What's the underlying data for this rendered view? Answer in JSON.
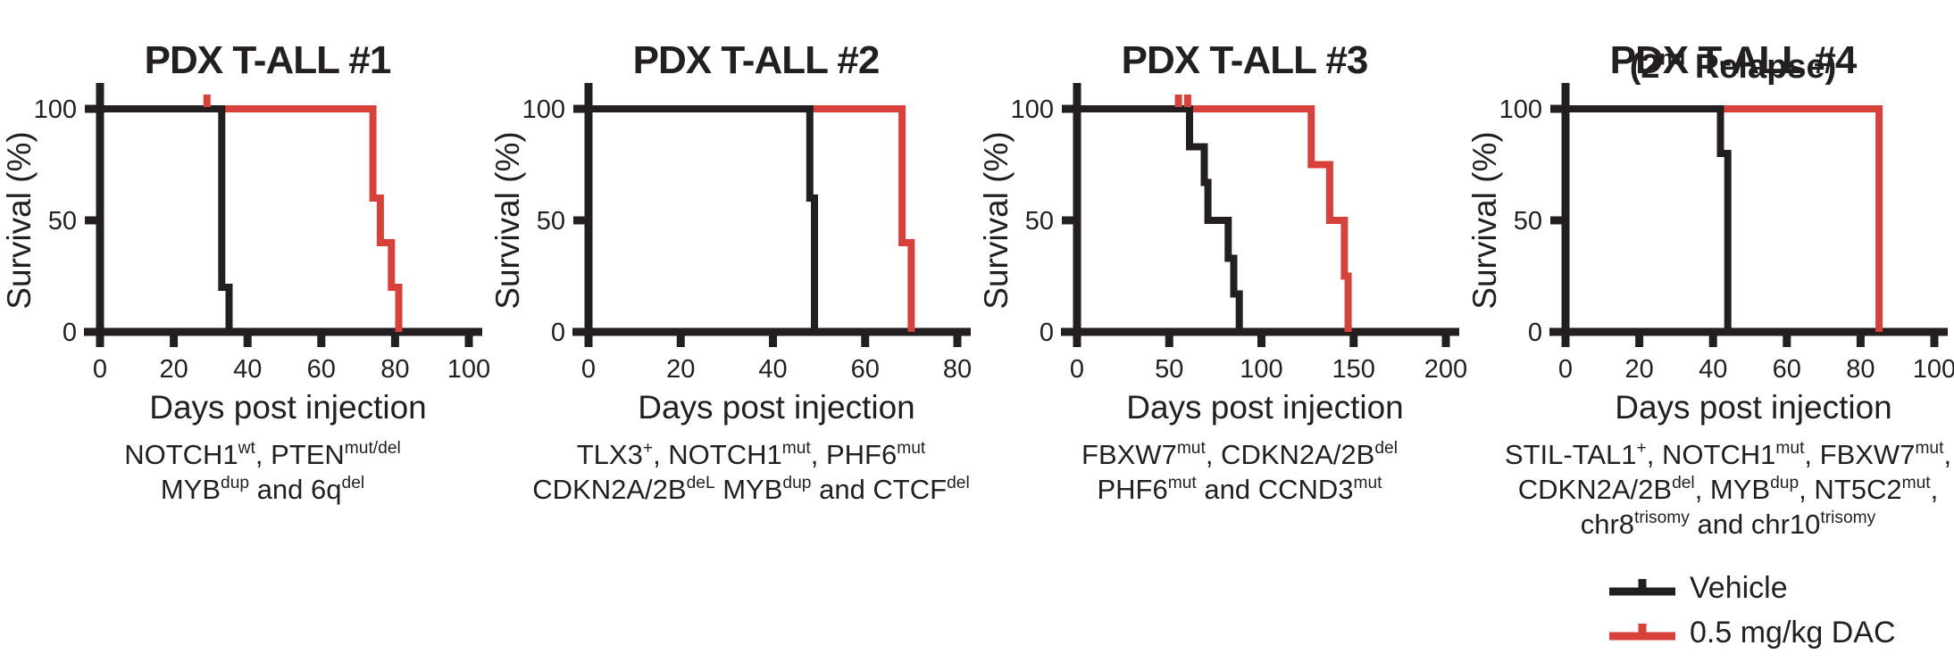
{
  "colors": {
    "vehicle": "#231f20",
    "dac": "#d8413a",
    "text": "#231f20"
  },
  "legend": {
    "entries": [
      {
        "label": "Vehicle",
        "color": "#231f20"
      },
      {
        "label": "0.5 mg/kg DAC",
        "color": "#d8413a"
      }
    ]
  },
  "chart_data": [
    {
      "type": "line",
      "subtype": "kaplan-meier-step",
      "title": "PDX T-ALL #1",
      "subtitle_segments": [],
      "xlabel": "Days post injection",
      "ylabel": "Survival (%)",
      "xlim": [
        0,
        100
      ],
      "xticks": [
        0,
        20,
        40,
        60,
        80,
        100
      ],
      "ylim": [
        0,
        100
      ],
      "yticks": [
        0,
        50,
        100
      ],
      "series": [
        {
          "name": "Vehicle",
          "color": "#231f20",
          "steps": [
            [
              0,
              100
            ],
            [
              33,
              100
            ],
            [
              33,
              20
            ],
            [
              35,
              20
            ],
            [
              35,
              0
            ]
          ],
          "censors": []
        },
        {
          "name": "0.5 mg/kg DAC",
          "color": "#d8413a",
          "steps": [
            [
              0,
              100
            ],
            [
              74,
              100
            ],
            [
              74,
              60
            ],
            [
              76,
              60
            ],
            [
              76,
              40
            ],
            [
              79,
              40
            ],
            [
              79,
              20
            ],
            [
              81,
              20
            ],
            [
              81,
              0
            ]
          ],
          "censors": [
            [
              29,
              100
            ]
          ]
        }
      ],
      "caption_lines": [
        [
          {
            "t": "NOTCH1"
          },
          {
            "sup": "wt"
          },
          {
            "t": ", PTEN"
          },
          {
            "sup": "mut/del"
          }
        ],
        [
          {
            "t": "MYB"
          },
          {
            "sup": "dup"
          },
          {
            "t": " and 6q"
          },
          {
            "sup": "del"
          }
        ]
      ]
    },
    {
      "type": "line",
      "subtype": "kaplan-meier-step",
      "title": "PDX T-ALL #2",
      "subtitle_segments": [],
      "xlabel": "Days post injection",
      "ylabel": "Survival (%)",
      "xlim": [
        0,
        80
      ],
      "xticks": [
        0,
        20,
        40,
        60,
        80
      ],
      "ylim": [
        0,
        100
      ],
      "yticks": [
        0,
        50,
        100
      ],
      "series": [
        {
          "name": "Vehicle",
          "color": "#231f20",
          "steps": [
            [
              0,
              100
            ],
            [
              48,
              100
            ],
            [
              48,
              60
            ],
            [
              49,
              60
            ],
            [
              49,
              0
            ]
          ],
          "censors": []
        },
        {
          "name": "0.5 mg/kg DAC",
          "color": "#d8413a",
          "steps": [
            [
              0,
              100
            ],
            [
              68,
              100
            ],
            [
              68,
              40
            ],
            [
              70,
              40
            ],
            [
              70,
              0
            ]
          ],
          "censors": []
        }
      ],
      "caption_lines": [
        [
          {
            "t": "TLX3"
          },
          {
            "sup": "+"
          },
          {
            "t": ", NOTCH1"
          },
          {
            "sup": "mut"
          },
          {
            "t": ", PHF6"
          },
          {
            "sup": "mut"
          }
        ],
        [
          {
            "t": "CDKN2A/2B"
          },
          {
            "sup": "deL"
          },
          {
            "t": " MYB"
          },
          {
            "sup": "dup"
          },
          {
            "t": " and CTCF"
          },
          {
            "sup": "del"
          }
        ]
      ]
    },
    {
      "type": "line",
      "subtype": "kaplan-meier-step",
      "title": "PDX T-ALL #3",
      "subtitle_segments": [],
      "xlabel": "Days post injection",
      "ylabel": "Survival (%)",
      "xlim": [
        0,
        200
      ],
      "xticks": [
        0,
        50,
        100,
        150,
        200
      ],
      "ylim": [
        0,
        100
      ],
      "yticks": [
        0,
        50,
        100
      ],
      "series": [
        {
          "name": "Vehicle",
          "color": "#231f20",
          "steps": [
            [
              0,
              100
            ],
            [
              61,
              100
            ],
            [
              61,
              83
            ],
            [
              69,
              83
            ],
            [
              69,
              67
            ],
            [
              71,
              67
            ],
            [
              71,
              50
            ],
            [
              82,
              50
            ],
            [
              82,
              33
            ],
            [
              85,
              33
            ],
            [
              85,
              17
            ],
            [
              88,
              17
            ],
            [
              88,
              0
            ]
          ],
          "censors": []
        },
        {
          "name": "0.5 mg/kg DAC",
          "color": "#d8413a",
          "steps": [
            [
              0,
              100
            ],
            [
              127,
              100
            ],
            [
              127,
              75
            ],
            [
              137,
              75
            ],
            [
              137,
              50
            ],
            [
              145,
              50
            ],
            [
              145,
              25
            ],
            [
              147,
              25
            ],
            [
              147,
              0
            ]
          ],
          "censors": [
            [
              55,
              100
            ],
            [
              60,
              100
            ]
          ]
        }
      ],
      "caption_lines": [
        [
          {
            "t": "FBXW7"
          },
          {
            "sup": "mut"
          },
          {
            "t": ", CDKN2A/2B"
          },
          {
            "sup": "del"
          }
        ],
        [
          {
            "t": "PHF6"
          },
          {
            "sup": "mut"
          },
          {
            "t": " and CCND3"
          },
          {
            "sup": "mut"
          }
        ]
      ]
    },
    {
      "type": "line",
      "subtype": "kaplan-meier-step",
      "title": "PDX T-ALL #4",
      "subtitle_segments": [
        {
          "t": "(2"
        },
        {
          "sup": "nd"
        },
        {
          "t": " Relapse)"
        }
      ],
      "xlabel": "Days post injection",
      "ylabel": "Survival (%)",
      "xlim": [
        0,
        100
      ],
      "xticks": [
        0,
        20,
        40,
        60,
        80,
        100
      ],
      "ylim": [
        0,
        100
      ],
      "yticks": [
        0,
        50,
        100
      ],
      "series": [
        {
          "name": "Vehicle",
          "color": "#231f20",
          "steps": [
            [
              0,
              100
            ],
            [
              42,
              100
            ],
            [
              42,
              80
            ],
            [
              44,
              80
            ],
            [
              44,
              0
            ]
          ],
          "censors": []
        },
        {
          "name": "0.5 mg/kg DAC",
          "color": "#d8413a",
          "steps": [
            [
              0,
              100
            ],
            [
              85,
              100
            ],
            [
              85,
              0
            ]
          ],
          "censors": []
        }
      ],
      "caption_lines": [
        [
          {
            "t": "STIL-TAL1"
          },
          {
            "sup": "+"
          },
          {
            "t": ", NOTCH1"
          },
          {
            "sup": "mut"
          },
          {
            "t": ", FBXW7"
          },
          {
            "sup": "mut"
          },
          {
            "t": ","
          }
        ],
        [
          {
            "t": "CDKN2A/2B"
          },
          {
            "sup": "del"
          },
          {
            "t": ", MYB"
          },
          {
            "sup": "dup"
          },
          {
            "t": ", NT5C2"
          },
          {
            "sup": "mut"
          },
          {
            "t": ","
          }
        ],
        [
          {
            "t": "chr8"
          },
          {
            "sup": "trisomy"
          },
          {
            "t": " and chr10"
          },
          {
            "sup": "trisomy"
          }
        ]
      ]
    }
  ]
}
